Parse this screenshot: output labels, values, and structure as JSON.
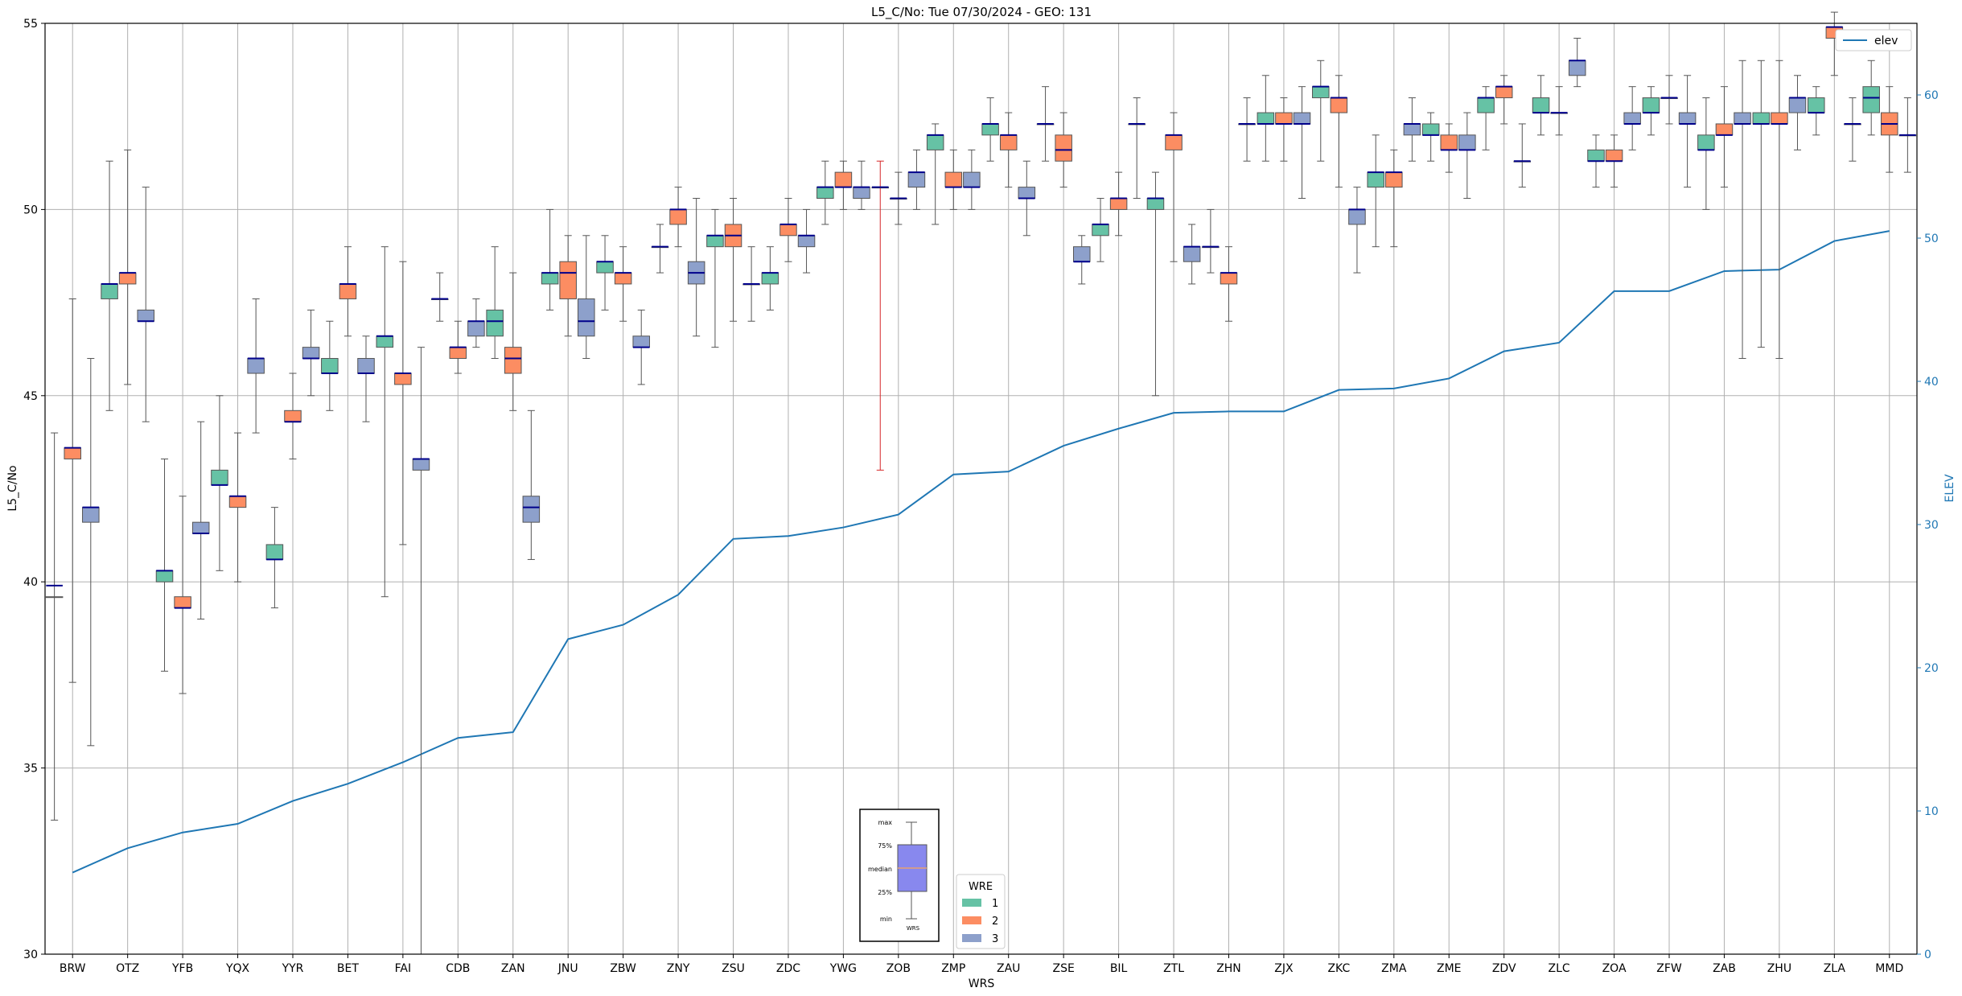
{
  "chart_data": {
    "type": "box",
    "title": "L5_C/No: Tue 07/30/2024 - GEO: 131",
    "xlabel": "WRS",
    "ylabel": "L5_C/No",
    "ylabel_right": "ELEV",
    "ylim": [
      30,
      55
    ],
    "ylim_right": [
      0,
      65
    ],
    "yticks": [
      30,
      35,
      40,
      45,
      50,
      55
    ],
    "yticks_right": [
      0,
      10,
      20,
      30,
      40,
      50,
      60
    ],
    "grid": true,
    "categories": [
      "BRW",
      "OTZ",
      "YFB",
      "YQX",
      "YYR",
      "BET",
      "FAI",
      "CDB",
      "ZAN",
      "JNU",
      "ZBW",
      "ZNY",
      "ZSU",
      "ZDC",
      "YWG",
      "ZOB",
      "ZMP",
      "ZAU",
      "ZSE",
      "BIL",
      "ZTL",
      "ZHN",
      "ZJX",
      "ZKC",
      "ZMA",
      "ZME",
      "ZDV",
      "ZLC",
      "ZOA",
      "ZFW",
      "ZAB",
      "ZHU",
      "ZLA",
      "MMD"
    ],
    "legend_wre": {
      "title": "WRE",
      "placement": "bottom-center",
      "items": [
        {
          "name": "1",
          "color": "#66c2a5"
        },
        {
          "name": "2",
          "color": "#fc8d62"
        },
        {
          "name": "3",
          "color": "#8da0cb"
        }
      ]
    },
    "legend_elev": {
      "placement": "top-right",
      "label": "elev",
      "color": "#1f77b4"
    },
    "key_box": {
      "labels": [
        "max",
        "75%",
        "median",
        "25%",
        "min"
      ],
      "xlabel": "WRS"
    },
    "boxes": [
      [
        [
          39.6,
          39.6,
          39.9,
          33.6,
          44.0
        ],
        [
          43.3,
          43.6,
          43.6,
          37.3,
          47.6
        ],
        [
          41.6,
          42.0,
          42.0,
          35.6,
          46.0
        ]
      ],
      [
        [
          47.6,
          48.0,
          48.0,
          44.6,
          51.3
        ],
        [
          48.0,
          48.3,
          48.3,
          45.3,
          51.6
        ],
        [
          47.0,
          47.3,
          47.0,
          44.3,
          50.6
        ]
      ],
      [
        [
          40.0,
          40.3,
          40.3,
          37.6,
          43.3
        ],
        [
          39.3,
          39.6,
          39.3,
          37.0,
          42.3
        ],
        [
          41.3,
          41.6,
          41.3,
          39.0,
          44.3
        ]
      ],
      [
        [
          42.6,
          43.0,
          42.6,
          40.3,
          45.0
        ],
        [
          42.0,
          42.3,
          42.3,
          40.0,
          44.0
        ],
        [
          45.6,
          46.0,
          46.0,
          44.0,
          47.6
        ]
      ],
      [
        [
          40.6,
          41.0,
          40.6,
          39.3,
          42.0
        ],
        [
          44.3,
          44.6,
          44.3,
          43.3,
          45.6
        ],
        [
          46.0,
          46.3,
          46.0,
          45.0,
          47.3
        ]
      ],
      [
        [
          45.6,
          46.0,
          45.6,
          44.6,
          47.0
        ],
        [
          47.6,
          48.0,
          48.0,
          46.6,
          49.0
        ],
        [
          45.6,
          46.0,
          45.6,
          44.3,
          46.6
        ]
      ],
      [
        [
          46.3,
          46.6,
          46.6,
          39.6,
          49.0
        ],
        [
          45.3,
          45.6,
          45.6,
          41.0,
          48.6
        ],
        [
          43.0,
          43.3,
          43.3,
          30.0,
          46.3
        ]
      ],
      [
        [
          47.6,
          47.6,
          47.6,
          47.0,
          48.3
        ],
        [
          46.0,
          46.3,
          46.3,
          45.6,
          47.0
        ],
        [
          46.6,
          47.0,
          47.0,
          46.3,
          47.6
        ]
      ],
      [
        [
          46.6,
          47.3,
          47.0,
          46.0,
          49.0
        ],
        [
          45.6,
          46.3,
          46.0,
          44.6,
          48.3
        ],
        [
          41.6,
          42.3,
          42.0,
          40.6,
          44.6
        ]
      ],
      [
        [
          48.0,
          48.3,
          48.3,
          47.3,
          50.0
        ],
        [
          47.6,
          48.6,
          48.3,
          46.6,
          49.3
        ],
        [
          46.6,
          47.6,
          47.0,
          46.0,
          49.3
        ]
      ],
      [
        [
          48.3,
          48.6,
          48.6,
          47.3,
          49.3
        ],
        [
          48.0,
          48.3,
          48.3,
          47.0,
          49.0
        ],
        [
          46.3,
          46.6,
          46.3,
          45.3,
          47.3
        ]
      ],
      [
        [
          49.0,
          49.0,
          49.0,
          48.3,
          49.6
        ],
        [
          49.6,
          50.0,
          50.0,
          49.0,
          50.6
        ],
        [
          48.0,
          48.6,
          48.3,
          46.6,
          50.3
        ]
      ],
      [
        [
          49.0,
          49.3,
          49.3,
          46.3,
          50.0
        ],
        [
          49.0,
          49.6,
          49.3,
          47.0,
          50.3
        ],
        [
          48.0,
          48.0,
          48.0,
          47.0,
          49.0
        ]
      ],
      [
        [
          48.0,
          48.3,
          48.3,
          47.3,
          49.0
        ],
        [
          49.3,
          49.6,
          49.6,
          48.6,
          50.3
        ],
        [
          49.0,
          49.3,
          49.3,
          48.3,
          50.0
        ]
      ],
      [
        [
          50.3,
          50.6,
          50.6,
          49.6,
          51.3
        ],
        [
          50.6,
          51.0,
          50.6,
          50.0,
          51.3
        ],
        [
          50.3,
          50.6,
          50.6,
          50.0,
          51.3
        ]
      ],
      [
        [
          50.6,
          50.6,
          50.6,
          43.0,
          51.3
        ],
        [
          50.3,
          50.3,
          50.3,
          49.6,
          51.0
        ],
        [
          50.6,
          51.0,
          51.0,
          50.0,
          51.6
        ]
      ],
      [
        [
          51.6,
          52.0,
          52.0,
          49.6,
          52.3
        ],
        [
          50.6,
          51.0,
          50.6,
          50.0,
          51.6
        ],
        [
          50.6,
          51.0,
          50.6,
          50.0,
          51.6
        ]
      ],
      [
        [
          52.0,
          52.3,
          52.3,
          51.3,
          53.0
        ],
        [
          51.6,
          52.0,
          52.0,
          50.6,
          52.6
        ],
        [
          50.3,
          50.6,
          50.3,
          49.3,
          51.3
        ]
      ],
      [
        [
          52.3,
          52.3,
          52.3,
          51.3,
          53.3
        ],
        [
          51.3,
          52.0,
          51.6,
          50.6,
          52.6
        ],
        [
          48.6,
          49.0,
          48.6,
          48.0,
          49.3
        ]
      ],
      [
        [
          49.3,
          49.6,
          49.6,
          48.6,
          50.3
        ],
        [
          50.0,
          50.3,
          50.3,
          49.3,
          51.0
        ],
        [
          52.3,
          52.3,
          52.3,
          50.3,
          53.0
        ]
      ],
      [
        [
          50.0,
          50.3,
          50.3,
          45.0,
          51.0
        ],
        [
          51.6,
          52.0,
          52.0,
          48.6,
          52.6
        ],
        [
          48.6,
          49.0,
          49.0,
          48.0,
          49.6
        ]
      ],
      [
        [
          49.0,
          49.0,
          49.0,
          48.3,
          50.0
        ],
        [
          48.0,
          48.3,
          48.3,
          47.0,
          49.0
        ],
        [
          52.3,
          52.3,
          52.3,
          51.3,
          53.0
        ]
      ],
      [
        [
          52.3,
          52.6,
          52.3,
          51.3,
          53.6
        ],
        [
          52.3,
          52.6,
          52.3,
          51.3,
          53.0
        ],
        [
          52.3,
          52.6,
          52.3,
          50.3,
          53.3
        ]
      ],
      [
        [
          53.0,
          53.3,
          53.3,
          51.3,
          54.0
        ],
        [
          52.6,
          53.0,
          53.0,
          50.6,
          53.6
        ],
        [
          49.6,
          50.0,
          50.0,
          48.3,
          50.6
        ]
      ],
      [
        [
          50.6,
          51.0,
          51.0,
          49.0,
          52.0
        ],
        [
          50.6,
          51.0,
          51.0,
          49.0,
          51.6
        ],
        [
          52.0,
          52.3,
          52.3,
          51.3,
          53.0
        ]
      ],
      [
        [
          52.0,
          52.3,
          52.0,
          51.3,
          52.6
        ],
        [
          51.6,
          52.0,
          51.6,
          51.0,
          52.3
        ],
        [
          51.6,
          52.0,
          51.6,
          50.3,
          52.6
        ]
      ],
      [
        [
          52.6,
          53.0,
          53.0,
          51.6,
          53.3
        ],
        [
          53.0,
          53.3,
          53.3,
          52.3,
          53.6
        ],
        [
          51.3,
          51.3,
          51.3,
          50.6,
          52.3
        ]
      ],
      [
        [
          52.6,
          53.0,
          52.6,
          52.0,
          53.6
        ],
        [
          52.6,
          52.6,
          52.6,
          52.0,
          53.3
        ],
        [
          53.6,
          54.0,
          54.0,
          53.3,
          54.6
        ]
      ],
      [
        [
          51.3,
          51.6,
          51.3,
          50.6,
          52.0
        ],
        [
          51.3,
          51.6,
          51.3,
          50.6,
          52.0
        ],
        [
          52.3,
          52.6,
          52.3,
          51.6,
          53.3
        ]
      ],
      [
        [
          52.6,
          53.0,
          52.6,
          52.0,
          53.3
        ],
        [
          53.0,
          53.0,
          53.0,
          52.3,
          53.6
        ],
        [
          52.3,
          52.6,
          52.3,
          50.6,
          53.6
        ]
      ],
      [
        [
          51.6,
          52.0,
          51.6,
          50.0,
          53.0
        ],
        [
          52.0,
          52.3,
          52.0,
          50.6,
          53.3
        ],
        [
          52.3,
          52.6,
          52.3,
          46.0,
          54.0
        ]
      ],
      [
        [
          52.3,
          52.6,
          52.3,
          46.3,
          54.0
        ],
        [
          52.3,
          52.6,
          52.3,
          46.0,
          54.0
        ],
        [
          52.6,
          53.0,
          53.0,
          51.6,
          53.6
        ]
      ],
      [
        [
          52.6,
          53.0,
          52.6,
          52.0,
          53.3
        ],
        [
          54.6,
          54.9,
          54.9,
          53.6,
          55.3
        ],
        [
          52.3,
          52.3,
          52.3,
          51.3,
          53.0
        ]
      ],
      [
        [
          52.6,
          53.3,
          53.0,
          52.0,
          54.0
        ],
        [
          52.0,
          52.6,
          52.3,
          51.0,
          53.3
        ],
        [
          52.0,
          52.0,
          52.0,
          51.0,
          53.0
        ]
      ]
    ],
    "elev": [
      5.7,
      7.4,
      8.5,
      9.1,
      10.7,
      11.9,
      13.4,
      15.1,
      15.5,
      22.0,
      23.0,
      25.1,
      29.0,
      29.2,
      29.8,
      30.7,
      33.5,
      33.7,
      35.5,
      36.7,
      37.8,
      37.9,
      37.9,
      39.4,
      39.5,
      40.2,
      42.1,
      42.7,
      46.3,
      46.3,
      47.7,
      47.8,
      49.8,
      50.5
    ]
  }
}
